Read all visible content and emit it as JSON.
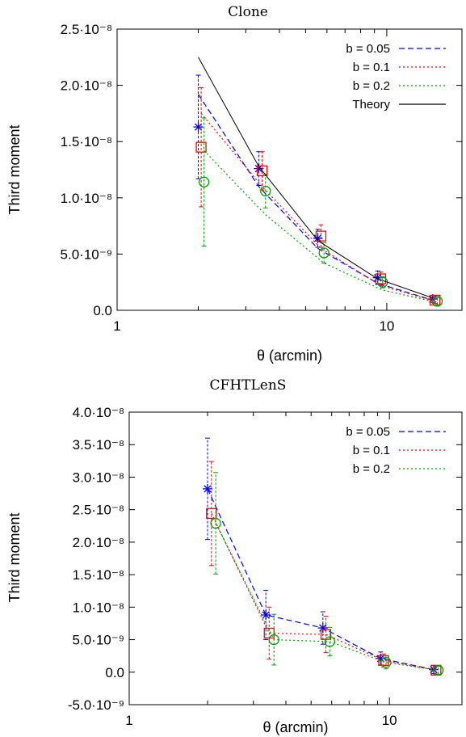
{
  "chart_data": [
    {
      "type": "line",
      "title": "Clone",
      "xlabel": "θ (arcmin)",
      "ylabel": "Third moment",
      "xscale": "log",
      "xlim": [
        1,
        19
      ],
      "ylim": [
        0,
        2.5e-08
      ],
      "x_ticks": [
        {
          "value": 1,
          "label": "1"
        },
        {
          "value": 10,
          "label": "10"
        }
      ],
      "y_ticks": [
        {
          "value": 0,
          "label": "0.0"
        },
        {
          "value": 5e-09,
          "label": "5.0·10⁻⁹"
        },
        {
          "value": 1e-08,
          "label": "1.0·10⁻⁸"
        },
        {
          "value": 1.5e-08,
          "label": "1.5·10⁻⁸"
        },
        {
          "value": 2e-08,
          "label": "2.0·10⁻⁸"
        },
        {
          "value": 2.5e-08,
          "label": "2.5·10⁻⁸"
        }
      ],
      "legend": "top-right",
      "series": [
        {
          "name": "b = 0.05",
          "color": "#0000ff",
          "dash": "dashed",
          "marker": "asterisk",
          "x": [
            2.0,
            3.35,
            5.55,
            9.25,
            14.8
          ],
          "y": [
            1.63e-08,
            1.26e-08,
            6.4e-09,
            2.9e-09,
            1e-09
          ],
          "err": [
            4.6e-09,
            1.5e-09,
            8e-10,
            6e-10,
            3e-10
          ]
        },
        {
          "name": "b = 0.1",
          "color": "#ff0000",
          "dash": "dotted",
          "marker": "square",
          "x": [
            2.05,
            3.45,
            5.7,
            9.5,
            15.1
          ],
          "y": [
            1.45e-08,
            1.24e-08,
            6.6e-09,
            2.8e-09,
            9e-10
          ],
          "err": [
            5.3e-09,
            1.7e-09,
            1e-09,
            6e-10,
            3e-10
          ]
        },
        {
          "name": "b = 0.2",
          "color": "#00a000",
          "dash": "dotted",
          "marker": "circle",
          "x": [
            2.1,
            3.55,
            5.85,
            9.65,
            15.4
          ],
          "y": [
            1.14e-08,
            1.06e-08,
            5.1e-09,
            2.5e-09,
            8e-10
          ],
          "err": [
            5.7e-09,
            1.5e-09,
            9e-10,
            5e-10,
            3e-10
          ]
        },
        {
          "name": "Theory",
          "color": "#000000",
          "dash": "solid",
          "marker": "none",
          "x": [
            2.0,
            3.35,
            5.55,
            9.25,
            14.8
          ],
          "y": [
            2.25e-08,
            1.28e-08,
            6.2e-09,
            2.8e-09,
            1.1e-09
          ],
          "err": []
        }
      ],
      "connect": [
        {
          "series": 0,
          "x": [
            2.0,
            3.35,
            5.55,
            9.25,
            14.8
          ],
          "y": [
            1.92e-08,
            1.1e-08,
            5.5e-09,
            2.4e-09,
            9e-10
          ]
        },
        {
          "series": 1,
          "x": [
            2.05,
            3.45,
            5.7,
            9.5,
            15.1
          ],
          "y": [
            1.75e-08,
            1.1e-08,
            5.5e-09,
            2.2e-09,
            8e-10
          ]
        },
        {
          "series": 2,
          "x": [
            2.1,
            3.55,
            5.85,
            9.65,
            15.4
          ],
          "y": [
            1.42e-08,
            8.5e-09,
            4.2e-09,
            1.8e-09,
            7e-10
          ]
        }
      ]
    },
    {
      "type": "line",
      "title": "CFHTLenS",
      "xlabel": "θ (arcmin)",
      "ylabel": "Third moment",
      "xscale": "log",
      "xlim": [
        1,
        19
      ],
      "ylim": [
        -5e-09,
        4e-08
      ],
      "x_ticks": [
        {
          "value": 1,
          "label": "1"
        },
        {
          "value": 10,
          "label": "10"
        }
      ],
      "y_ticks": [
        {
          "value": -5e-09,
          "label": "-5.0·10⁻⁹"
        },
        {
          "value": 0,
          "label": "0.0"
        },
        {
          "value": 5e-09,
          "label": "5.0·10⁻⁹"
        },
        {
          "value": 1e-08,
          "label": "1.0·10⁻⁸"
        },
        {
          "value": 1.5e-08,
          "label": "1.5·10⁻⁸"
        },
        {
          "value": 2e-08,
          "label": "2.0·10⁻⁸"
        },
        {
          "value": 2.5e-08,
          "label": "2.5·10⁻⁸"
        },
        {
          "value": 3e-08,
          "label": "3.0·10⁻⁸"
        },
        {
          "value": 3.5e-08,
          "label": "3.5·10⁻⁸"
        },
        {
          "value": 4e-08,
          "label": "4.0·10⁻⁸"
        }
      ],
      "legend": "top-right",
      "series": [
        {
          "name": "b = 0.05",
          "color": "#0000ff",
          "dash": "dashed",
          "marker": "asterisk",
          "x": [
            2.0,
            3.35,
            5.55,
            9.25,
            14.8
          ],
          "y": [
            2.82e-08,
            8.8e-09,
            6.8e-09,
            2.1e-09,
            4e-10
          ],
          "err": [
            7.8e-09,
            3.8e-09,
            2.5e-09,
            1e-09,
            6e-10
          ]
        },
        {
          "name": "b = 0.1",
          "color": "#ff0000",
          "dash": "dotted",
          "marker": "square",
          "x": [
            2.07,
            3.45,
            5.7,
            9.5,
            15.1
          ],
          "y": [
            2.44e-08,
            6e-09,
            5.8e-09,
            1.8e-09,
            3e-10
          ],
          "err": [
            8e-09,
            4e-09,
            2.8e-09,
            1e-09,
            6e-10
          ]
        },
        {
          "name": "b = 0.2",
          "color": "#00a000",
          "dash": "dotted",
          "marker": "circle",
          "x": [
            2.15,
            3.6,
            5.9,
            9.7,
            15.4
          ],
          "y": [
            2.29e-08,
            5e-09,
            4.7e-09,
            1.5e-09,
            3e-10
          ],
          "err": [
            7.8e-09,
            3.9e-09,
            2.2e-09,
            1e-09,
            6e-10
          ]
        }
      ]
    }
  ]
}
